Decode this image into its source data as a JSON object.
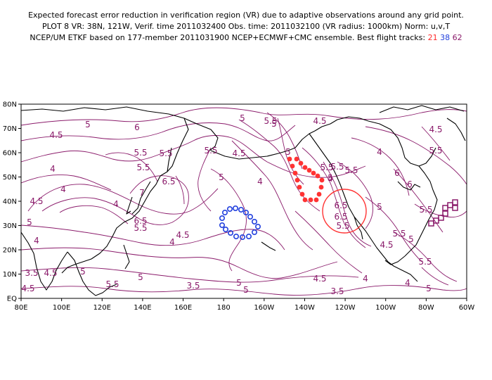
{
  "header": {
    "line1": "Expected forecast error reduction in verification region (VR) due to adaptive observations around any grid point.",
    "line2": "PLOT 8 VR: 38N, 121W, Verif. time 2011032400 Obs. time: 2011032100 (VR radius: 1000km) Norm: u,v,T",
    "line3_prefix": "NCEP/UM ETKF based on 177-member 2011031900 NCEP+ECMWF+CMC ensemble. Best flight tracks:",
    "track_red": "21",
    "track_blue": "38",
    "track_purple": "62"
  },
  "axes": {
    "lat_labels": [
      "80N",
      "70N",
      "60N",
      "50N",
      "40N",
      "30N",
      "20N",
      "10N",
      "EQ"
    ],
    "lon_labels": [
      "80E",
      "100E",
      "120E",
      "140E",
      "160E",
      "180",
      "160W",
      "140W",
      "120W",
      "100W",
      "80W",
      "60W"
    ]
  },
  "contour_labels": [
    "5",
    "4.5",
    "5.5",
    "6",
    "4.5",
    "5",
    "5.5",
    "4.5",
    "5.5",
    "4",
    "5",
    "4",
    "5.5",
    "5.5",
    "6.5",
    "5.5",
    "4.5",
    "4",
    "7",
    "6.5",
    "5.5",
    "4",
    "4.5",
    "5",
    "4",
    "4.5",
    "6.5",
    "4",
    "5.5",
    "6",
    "5.5",
    "4.5",
    "5",
    "5.5",
    "6",
    "6.5",
    "5",
    "5",
    "5.5",
    "4",
    "4.5",
    "4",
    "5",
    "5.5",
    "5.5",
    "5",
    "5.5",
    "4.5",
    "5",
    "5",
    "4",
    "3.5",
    "3.5",
    "5",
    "5",
    "4.5",
    "3.5",
    "4",
    "5",
    "5.5"
  ],
  "colors": {
    "contour": "#8a1a6a",
    "coast": "#000000",
    "track_red": "#ff3333",
    "track_blue": "#2240dd",
    "track_purple": "#8a1a6a",
    "verification_circle": "#ff3333"
  }
}
